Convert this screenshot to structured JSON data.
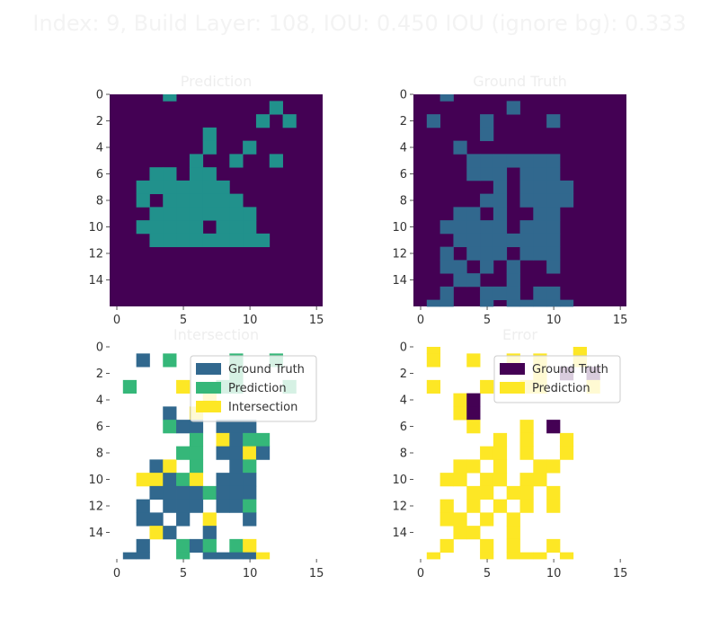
{
  "figure": {
    "title": "Index: 9, Build Layer: 108, IOU: 0.450 IOU (ignore bg): 0.333"
  },
  "colors": {
    "background": "#440154",
    "ground_truth": "#31688e",
    "prediction_map": "#21918c",
    "prediction": "#35b779",
    "intersection": "#fde725",
    "error_ground_truth": "#440154",
    "error_prediction": "#fde725"
  },
  "chart_data": [
    {
      "type": "heatmap",
      "title": "Prediction",
      "xticks": [
        "0",
        "5",
        "10",
        "15"
      ],
      "yticks": [
        "0",
        "2",
        "4",
        "6",
        "8",
        "10",
        "12",
        "14"
      ],
      "cells": [
        [
          0,
          4
        ],
        [
          1,
          12
        ],
        [
          2,
          11
        ],
        [
          2,
          13
        ],
        [
          3,
          7
        ],
        [
          4,
          7
        ],
        [
          4,
          10
        ],
        [
          5,
          6
        ],
        [
          5,
          9
        ],
        [
          5,
          12
        ],
        [
          6,
          3
        ],
        [
          6,
          4
        ],
        [
          6,
          6
        ],
        [
          6,
          7
        ],
        [
          7,
          2
        ],
        [
          7,
          3
        ],
        [
          7,
          4
        ],
        [
          7,
          5
        ],
        [
          7,
          6
        ],
        [
          7,
          7
        ],
        [
          7,
          8
        ],
        [
          8,
          2
        ],
        [
          8,
          4
        ],
        [
          8,
          5
        ],
        [
          8,
          6
        ],
        [
          8,
          7
        ],
        [
          8,
          8
        ],
        [
          8,
          9
        ],
        [
          9,
          3
        ],
        [
          9,
          4
        ],
        [
          9,
          5
        ],
        [
          9,
          6
        ],
        [
          9,
          7
        ],
        [
          9,
          8
        ],
        [
          9,
          9
        ],
        [
          9,
          10
        ],
        [
          10,
          2
        ],
        [
          10,
          3
        ],
        [
          10,
          4
        ],
        [
          10,
          5
        ],
        [
          10,
          6
        ],
        [
          10,
          8
        ],
        [
          10,
          9
        ],
        [
          10,
          10
        ],
        [
          11,
          3
        ],
        [
          11,
          4
        ],
        [
          11,
          5
        ],
        [
          11,
          6
        ],
        [
          11,
          7
        ],
        [
          11,
          8
        ],
        [
          11,
          9
        ],
        [
          11,
          10
        ],
        [
          11,
          11
        ]
      ]
    },
    {
      "type": "heatmap",
      "title": "Ground Truth",
      "xticks": [
        "0",
        "5",
        "10",
        "15"
      ],
      "yticks": [
        "0",
        "2",
        "4",
        "6",
        "8",
        "10",
        "12",
        "14"
      ],
      "cells": [
        [
          0,
          2
        ],
        [
          1,
          7
        ],
        [
          2,
          1
        ],
        [
          2,
          5
        ],
        [
          2,
          10
        ],
        [
          3,
          5
        ],
        [
          4,
          3
        ],
        [
          5,
          4
        ],
        [
          5,
          5
        ],
        [
          5,
          6
        ],
        [
          5,
          7
        ],
        [
          5,
          8
        ],
        [
          5,
          9
        ],
        [
          5,
          10
        ],
        [
          6,
          4
        ],
        [
          6,
          5
        ],
        [
          6,
          6
        ],
        [
          6,
          8
        ],
        [
          6,
          9
        ],
        [
          6,
          10
        ],
        [
          7,
          6
        ],
        [
          7,
          8
        ],
        [
          7,
          9
        ],
        [
          7,
          10
        ],
        [
          7,
          11
        ],
        [
          8,
          5
        ],
        [
          8,
          6
        ],
        [
          8,
          8
        ],
        [
          8,
          9
        ],
        [
          8,
          10
        ],
        [
          8,
          11
        ],
        [
          9,
          3
        ],
        [
          9,
          4
        ],
        [
          9,
          6
        ],
        [
          9,
          9
        ],
        [
          9,
          10
        ],
        [
          10,
          2
        ],
        [
          10,
          3
        ],
        [
          10,
          4
        ],
        [
          10,
          5
        ],
        [
          10,
          6
        ],
        [
          10,
          8
        ],
        [
          10,
          9
        ],
        [
          10,
          10
        ],
        [
          11,
          3
        ],
        [
          11,
          4
        ],
        [
          11,
          5
        ],
        [
          11,
          6
        ],
        [
          11,
          7
        ],
        [
          11,
          8
        ],
        [
          11,
          9
        ],
        [
          11,
          10
        ],
        [
          12,
          2
        ],
        [
          12,
          4
        ],
        [
          12,
          5
        ],
        [
          12,
          6
        ],
        [
          12,
          8
        ],
        [
          12,
          9
        ],
        [
          12,
          10
        ],
        [
          13,
          2
        ],
        [
          13,
          3
        ],
        [
          13,
          5
        ],
        [
          13,
          7
        ],
        [
          13,
          10
        ],
        [
          14,
          3
        ],
        [
          14,
          4
        ],
        [
          14,
          7
        ],
        [
          15,
          2
        ],
        [
          15,
          5
        ],
        [
          15,
          6
        ],
        [
          15,
          7
        ],
        [
          15,
          9
        ],
        [
          15,
          10
        ],
        [
          16,
          1
        ],
        [
          16,
          2
        ],
        [
          16,
          5
        ],
        [
          16,
          7
        ],
        [
          16,
          8
        ],
        [
          16,
          9
        ],
        [
          16,
          10
        ],
        [
          16,
          11
        ]
      ]
    },
    {
      "type": "heatmap",
      "title": "Intersection",
      "xticks": [
        "0",
        "5",
        "10",
        "15"
      ],
      "yticks": [
        "0",
        "2",
        "4",
        "6",
        "8",
        "10",
        "12",
        "14"
      ],
      "legend": {
        "placement": "top-right",
        "entries": [
          "Ground Truth",
          "Prediction",
          "Intersection"
        ]
      },
      "cells": [
        [
          1,
          2,
          1
        ],
        [
          1,
          4,
          2
        ],
        [
          1,
          9,
          2
        ],
        [
          1,
          12,
          2
        ],
        [
          2,
          9,
          2
        ],
        [
          3,
          1,
          2
        ],
        [
          3,
          5,
          3
        ],
        [
          3,
          8,
          2
        ],
        [
          3,
          9,
          2
        ],
        [
          3,
          13,
          2
        ],
        [
          4,
          7,
          3
        ],
        [
          5,
          4,
          1
        ],
        [
          5,
          6,
          3
        ],
        [
          6,
          4,
          2
        ],
        [
          6,
          5,
          1
        ],
        [
          6,
          6,
          1
        ],
        [
          6,
          8,
          1
        ],
        [
          6,
          9,
          1
        ],
        [
          6,
          10,
          1
        ],
        [
          7,
          6,
          2
        ],
        [
          7,
          8,
          3
        ],
        [
          7,
          9,
          1
        ],
        [
          7,
          10,
          2
        ],
        [
          7,
          11,
          2
        ],
        [
          8,
          5,
          2
        ],
        [
          8,
          6,
          2
        ],
        [
          8,
          8,
          1
        ],
        [
          8,
          9,
          1
        ],
        [
          8,
          10,
          3
        ],
        [
          8,
          11,
          1
        ],
        [
          9,
          3,
          1
        ],
        [
          9,
          4,
          3
        ],
        [
          9,
          6,
          2
        ],
        [
          9,
          9,
          1
        ],
        [
          9,
          10,
          2
        ],
        [
          10,
          2,
          3
        ],
        [
          10,
          3,
          3
        ],
        [
          10,
          4,
          1
        ],
        [
          10,
          5,
          2
        ],
        [
          10,
          6,
          3
        ],
        [
          10,
          8,
          1
        ],
        [
          10,
          9,
          1
        ],
        [
          10,
          10,
          1
        ],
        [
          11,
          3,
          1
        ],
        [
          11,
          4,
          1
        ],
        [
          11,
          5,
          1
        ],
        [
          11,
          6,
          1
        ],
        [
          11,
          7,
          2
        ],
        [
          11,
          8,
          1
        ],
        [
          11,
          9,
          1
        ],
        [
          11,
          10,
          1
        ],
        [
          12,
          2,
          1
        ],
        [
          12,
          4,
          1
        ],
        [
          12,
          5,
          1
        ],
        [
          12,
          6,
          1
        ],
        [
          12,
          8,
          1
        ],
        [
          12,
          9,
          1
        ],
        [
          12,
          10,
          2
        ],
        [
          13,
          2,
          1
        ],
        [
          13,
          3,
          1
        ],
        [
          13,
          5,
          1
        ],
        [
          13,
          7,
          3
        ],
        [
          13,
          10,
          1
        ],
        [
          14,
          3,
          3
        ],
        [
          14,
          4,
          1
        ],
        [
          14,
          7,
          1
        ],
        [
          15,
          2,
          1
        ],
        [
          15,
          5,
          2
        ],
        [
          15,
          6,
          1
        ],
        [
          15,
          7,
          2
        ],
        [
          15,
          9,
          2
        ],
        [
          15,
          10,
          3
        ],
        [
          16,
          1,
          1
        ],
        [
          16,
          2,
          1
        ],
        [
          16,
          5,
          2
        ],
        [
          16,
          7,
          1
        ],
        [
          16,
          8,
          1
        ],
        [
          16,
          9,
          1
        ],
        [
          16,
          10,
          1
        ],
        [
          16,
          11,
          3
        ]
      ]
    },
    {
      "type": "heatmap",
      "title": "Error",
      "xticks": [
        "0",
        "5",
        "10",
        "15"
      ],
      "yticks": [
        "0",
        "2",
        "4",
        "6",
        "8",
        "10",
        "12",
        "14"
      ],
      "legend": {
        "placement": "top-right",
        "entries": [
          "Ground Truth",
          "Prediction"
        ]
      },
      "cells": [
        [
          0,
          1,
          2
        ],
        [
          0,
          12,
          2
        ],
        [
          1,
          1,
          2
        ],
        [
          1,
          4,
          2
        ],
        [
          1,
          7,
          2
        ],
        [
          1,
          9,
          2
        ],
        [
          1,
          12,
          2
        ],
        [
          2,
          9,
          2
        ],
        [
          2,
          11,
          1
        ],
        [
          2,
          13,
          1
        ],
        [
          3,
          1,
          2
        ],
        [
          3,
          5,
          2
        ],
        [
          3,
          8,
          2
        ],
        [
          3,
          9,
          2
        ],
        [
          3,
          13,
          2
        ],
        [
          4,
          3,
          2
        ],
        [
          4,
          4,
          1
        ],
        [
          5,
          3,
          2
        ],
        [
          5,
          4,
          1
        ],
        [
          6,
          4,
          2
        ],
        [
          6,
          8,
          2
        ],
        [
          6,
          10,
          1
        ],
        [
          7,
          6,
          2
        ],
        [
          7,
          8,
          2
        ],
        [
          7,
          11,
          2
        ],
        [
          8,
          5,
          2
        ],
        [
          8,
          6,
          2
        ],
        [
          8,
          8,
          2
        ],
        [
          8,
          11,
          2
        ],
        [
          9,
          3,
          2
        ],
        [
          9,
          4,
          2
        ],
        [
          9,
          6,
          2
        ],
        [
          9,
          9,
          2
        ],
        [
          9,
          10,
          2
        ],
        [
          10,
          2,
          2
        ],
        [
          10,
          3,
          2
        ],
        [
          10,
          5,
          2
        ],
        [
          10,
          6,
          2
        ],
        [
          10,
          8,
          2
        ],
        [
          10,
          9,
          2
        ],
        [
          11,
          4,
          2
        ],
        [
          11,
          5,
          2
        ],
        [
          11,
          7,
          2
        ],
        [
          11,
          8,
          2
        ],
        [
          11,
          10,
          2
        ],
        [
          12,
          2,
          2
        ],
        [
          12,
          4,
          2
        ],
        [
          12,
          6,
          2
        ],
        [
          12,
          8,
          2
        ],
        [
          12,
          10,
          2
        ],
        [
          13,
          2,
          2
        ],
        [
          13,
          3,
          2
        ],
        [
          13,
          5,
          2
        ],
        [
          13,
          7,
          2
        ],
        [
          14,
          3,
          2
        ],
        [
          14,
          4,
          2
        ],
        [
          14,
          7,
          2
        ],
        [
          15,
          2,
          2
        ],
        [
          15,
          5,
          2
        ],
        [
          15,
          7,
          2
        ],
        [
          15,
          10,
          2
        ],
        [
          16,
          1,
          2
        ],
        [
          16,
          5,
          2
        ],
        [
          16,
          7,
          2
        ],
        [
          16,
          8,
          2
        ],
        [
          16,
          9,
          2
        ],
        [
          16,
          11,
          2
        ]
      ]
    }
  ]
}
